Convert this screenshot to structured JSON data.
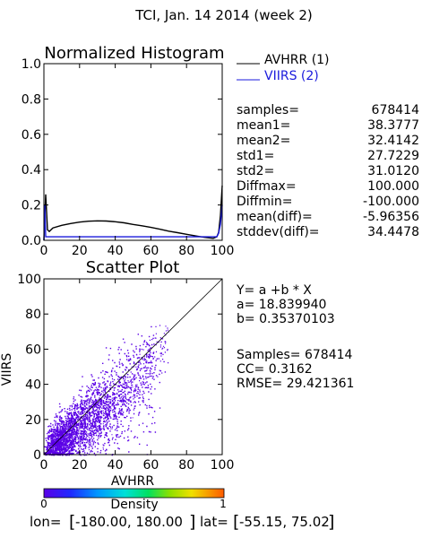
{
  "page_title": "TCI,  Jan. 14 2014 (week 2)",
  "chart_data": [
    {
      "type": "line",
      "title": "Normalized Histogram",
      "xlim": [
        0,
        100
      ],
      "ylim": [
        0,
        1.0
      ],
      "x_ticks": [
        "0",
        "20",
        "40",
        "60",
        "80",
        "100"
      ],
      "y_ticks": [
        "0.0",
        "0.2",
        "0.4",
        "0.6",
        "0.8",
        "1.0"
      ],
      "legend_position": "top-right-outside",
      "series": [
        {
          "name": "AVHRR (1)",
          "color": "#000000",
          "points": [
            [
              0,
              0.0
            ],
            [
              1,
              0.26
            ],
            [
              2,
              0.06
            ],
            [
              3,
              0.05
            ],
            [
              5,
              0.07
            ],
            [
              10,
              0.085
            ],
            [
              15,
              0.095
            ],
            [
              20,
              0.103
            ],
            [
              25,
              0.108
            ],
            [
              30,
              0.11
            ],
            [
              35,
              0.109
            ],
            [
              40,
              0.105
            ],
            [
              45,
              0.099
            ],
            [
              50,
              0.09
            ],
            [
              55,
              0.082
            ],
            [
              60,
              0.073
            ],
            [
              65,
              0.063
            ],
            [
              70,
              0.052
            ],
            [
              75,
              0.043
            ],
            [
              80,
              0.034
            ],
            [
              85,
              0.025
            ],
            [
              90,
              0.017
            ],
            [
              95,
              0.011
            ],
            [
              97,
              0.02
            ],
            [
              98,
              0.045
            ],
            [
              99,
              0.14
            ],
            [
              100,
              0.31
            ]
          ]
        },
        {
          "name": "VIIRS (2)",
          "color": "#1a1adc",
          "points": [
            [
              0,
              0.0
            ],
            [
              0.5,
              0.2
            ],
            [
              1,
              0.02
            ],
            [
              5,
              0.02
            ],
            [
              20,
              0.02
            ],
            [
              40,
              0.02
            ],
            [
              60,
              0.02
            ],
            [
              80,
              0.02
            ],
            [
              90,
              0.02
            ],
            [
              97,
              0.02
            ],
            [
              98,
              0.04
            ],
            [
              99,
              0.09
            ],
            [
              100,
              0.2
            ]
          ]
        }
      ]
    },
    {
      "type": "scatter",
      "title": "Scatter Plot",
      "xlabel": "AVHRR",
      "ylabel": "VIIRS",
      "xlim": [
        0,
        100
      ],
      "ylim": [
        0,
        100
      ],
      "x_ticks": [
        "0",
        "20",
        "40",
        "60",
        "80",
        "100"
      ],
      "y_ticks": [
        "0",
        "20",
        "40",
        "60",
        "80",
        "100"
      ],
      "fit": {
        "a": 18.83994,
        "b": 0.35370103
      },
      "point_color": "#5a00e6",
      "colorbar": {
        "label": "Density",
        "min_label": "0",
        "max_label": "1"
      }
    }
  ],
  "stats": [
    {
      "label": "samples=",
      "value": "678414"
    },
    {
      "label": "mean1=",
      "value": "38.3777"
    },
    {
      "label": "mean2=",
      "value": "32.4142"
    },
    {
      "label": "std1=",
      "value": "27.7229"
    },
    {
      "label": "std2=",
      "value": "31.0120"
    },
    {
      "label": "Diffmax=",
      "value": "100.000"
    },
    {
      "label": "Diffmin=",
      "value": "-100.000"
    },
    {
      "label": "mean(diff)=",
      "value": "-5.96356"
    },
    {
      "label": "stddev(diff)=",
      "value": "34.4478"
    }
  ],
  "regression": {
    "equation": "Y= a +b * X",
    "a_line": "a= 18.839940",
    "b_line": "b= 0.35370103",
    "samples_line": "Samples= 678414",
    "cc_line": "CC=  0.3162",
    "rmse_line": "RMSE= 29.421361"
  },
  "footer": {
    "lon_label": "lon=",
    "lon_range": "-180.00, 180.00",
    "lat_label": "lat=",
    "lat_range": "-55.15, 75.02"
  }
}
